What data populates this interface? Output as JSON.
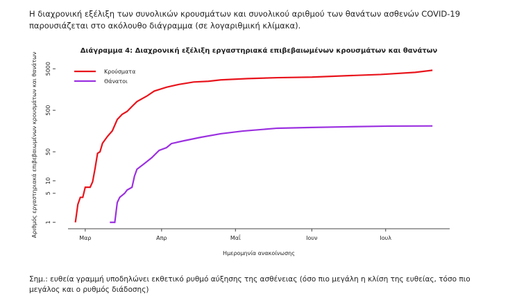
{
  "intro": "Η διαχρονική εξέλιξη των συνολικών κρουσμάτων και συνολικού αριθμού των θανάτων ασθενών COVID-19 παρουσιάζεται στο ακόλουθο διάγραμμα (σε λογαριθμική κλίμακα).",
  "chart_data": {
    "type": "line",
    "title": "Διάγραμμα 4: Διαχρονική εξέλιξη εργαστηριακά επιβεβαιωμένων κρουσμάτων και θανάτων",
    "xlabel": "Ημερομηνία ανακοίνωσης",
    "ylabel": "Αριθμός εργαστηριακά επιβεβαιωμένων κρουσμάτων και θανάτων",
    "log_y": true,
    "legend": "upper left",
    "xlim": [
      -7,
      148
    ],
    "xticks": [
      {
        "value": 0,
        "label": "Μαρ"
      },
      {
        "value": 31,
        "label": "Απρ"
      },
      {
        "value": 61,
        "label": "Μαΐ"
      },
      {
        "value": 92,
        "label": "Ιουν"
      },
      {
        "value": 122,
        "label": "Ιουλ"
      }
    ],
    "ylim": [
      0.7,
      7700
    ],
    "yticks": [
      1,
      5,
      10,
      50,
      500,
      5000
    ],
    "series": [
      {
        "name": "Κρούσματα",
        "color": "#e8141c",
        "x": [
          -4,
          -3,
          -2,
          -1,
          0,
          2,
          3,
          4,
          5,
          6,
          7,
          9,
          11,
          13,
          15,
          17,
          19,
          21,
          25,
          28,
          33,
          38,
          44,
          50,
          55,
          66,
          78,
          92,
          106,
          120,
          134,
          141
        ],
        "values": [
          1,
          2.7,
          4,
          4,
          7,
          7,
          9.5,
          20,
          46,
          50,
          80,
          117,
          160,
          300,
          400,
          470,
          620,
          810,
          1100,
          1450,
          1800,
          2100,
          2400,
          2500,
          2700,
          2900,
          3050,
          3150,
          3400,
          3650,
          4100,
          4600
        ]
      },
      {
        "name": "Θάνατοι",
        "color": "#9b30e0",
        "x": [
          10,
          12,
          13,
          14,
          16,
          17,
          19,
          20,
          21,
          24,
          27,
          30,
          33,
          35,
          40,
          47,
          55,
          64,
          78,
          92,
          106,
          123,
          141
        ],
        "values": [
          1,
          1,
          3,
          4,
          5,
          6,
          7,
          13,
          19,
          26,
          36,
          54,
          63,
          79,
          92,
          112,
          136,
          158,
          185,
          193,
          200,
          208,
          210
        ]
      }
    ]
  },
  "note": "Σημ.: ευθεία γραμμή υποδηλώνει εκθετικό ρυθμό αύξησης της ασθένειας (όσο πιο μεγάλη η κλίση της ευθείας, τόσο πιο μεγάλος και ο ρυθμός διάδοσης)"
}
